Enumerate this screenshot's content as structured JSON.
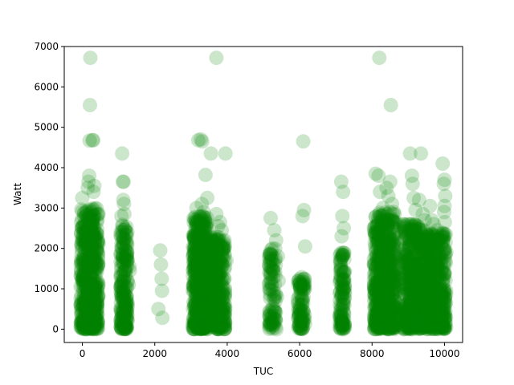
{
  "chart_data": {
    "type": "scatter",
    "title": "",
    "xlabel": "TUC",
    "ylabel": "Watt",
    "xlim": [
      -500,
      10500
    ],
    "ylim": [
      -330,
      7000
    ],
    "xticks": [
      0,
      2000,
      4000,
      6000,
      8000,
      10000
    ],
    "yticks": [
      0,
      1000,
      2000,
      3000,
      4000,
      5000,
      6000,
      7000
    ],
    "grid": false,
    "legend": "none",
    "marker_color": "#008000",
    "marker_alpha": 0.2,
    "clusters": [
      {
        "x": [
          -50,
          450
        ],
        "y": [
          0,
          3000
        ],
        "n": 520
      },
      {
        "x": [
          1050,
          1250
        ],
        "y": [
          0,
          2600
        ],
        "n": 200
      },
      {
        "x": [
          3050,
          3450
        ],
        "y": [
          0,
          2800
        ],
        "n": 460
      },
      {
        "x": [
          3450,
          3950
        ],
        "y": [
          0,
          2300
        ],
        "n": 320
      },
      {
        "x": [
          5150,
          5350
        ],
        "y": [
          0,
          2000
        ],
        "n": 90
      },
      {
        "x": [
          5950,
          6150
        ],
        "y": [
          0,
          1300
        ],
        "n": 90
      },
      {
        "x": [
          7100,
          7250
        ],
        "y": [
          0,
          1900
        ],
        "n": 110
      },
      {
        "x": [
          8050,
          8650
        ],
        "y": [
          0,
          2900
        ],
        "n": 560
      },
      {
        "x": [
          8850,
          9450
        ],
        "y": [
          0,
          2600
        ],
        "n": 440
      },
      {
        "x": [
          9450,
          10050
        ],
        "y": [
          0,
          2400
        ],
        "n": 420
      }
    ],
    "points": [
      [
        0,
        3250
      ],
      [
        150,
        3500
      ],
      [
        170,
        3650
      ],
      [
        190,
        3800
      ],
      [
        210,
        5550
      ],
      [
        220,
        6720
      ],
      [
        200,
        4670
      ],
      [
        280,
        4680
      ],
      [
        300,
        4680
      ],
      [
        310,
        3400
      ],
      [
        330,
        3550
      ],
      [
        60,
        1600
      ],
      [
        40,
        1150
      ],
      [
        30,
        600
      ],
      [
        1100,
        4350
      ],
      [
        1120,
        3650
      ],
      [
        1140,
        3650
      ],
      [
        1130,
        3200
      ],
      [
        1150,
        3100
      ],
      [
        1160,
        2850
      ],
      [
        1080,
        2800
      ],
      [
        1110,
        2550
      ],
      [
        1300,
        1550
      ],
      [
        1280,
        1100
      ],
      [
        1310,
        1450
      ],
      [
        2100,
        500
      ],
      [
        2150,
        1950
      ],
      [
        2170,
        1600
      ],
      [
        2190,
        1250
      ],
      [
        2200,
        950
      ],
      [
        2210,
        280
      ],
      [
        3200,
        4680
      ],
      [
        3270,
        4700
      ],
      [
        3310,
        4650
      ],
      [
        3300,
        3100
      ],
      [
        3350,
        2900
      ],
      [
        3150,
        3000
      ],
      [
        3400,
        3820
      ],
      [
        3450,
        3250
      ],
      [
        3550,
        4350
      ],
      [
        3700,
        6720
      ],
      [
        3700,
        2850
      ],
      [
        3750,
        2550
      ],
      [
        3800,
        2650
      ],
      [
        3850,
        2450
      ],
      [
        3950,
        4350
      ],
      [
        3900,
        2000
      ],
      [
        3980,
        1700
      ],
      [
        3120,
        2700
      ],
      [
        5200,
        2750
      ],
      [
        5300,
        2450
      ],
      [
        5250,
        2000
      ],
      [
        5350,
        2200
      ],
      [
        5400,
        1800
      ],
      [
        5420,
        1200
      ],
      [
        5380,
        800
      ],
      [
        5360,
        0
      ],
      [
        6100,
        4650
      ],
      [
        6120,
        2950
      ],
      [
        6080,
        2800
      ],
      [
        6150,
        2050
      ],
      [
        6130,
        1250
      ],
      [
        6110,
        1100
      ],
      [
        7150,
        3650
      ],
      [
        7200,
        3400
      ],
      [
        7180,
        2800
      ],
      [
        7220,
        2500
      ],
      [
        7160,
        2300
      ],
      [
        7210,
        0
      ],
      [
        8100,
        3850
      ],
      [
        8180,
        3800
      ],
      [
        8200,
        6720
      ],
      [
        8220,
        3400
      ],
      [
        8250,
        2800
      ],
      [
        8300,
        3000
      ],
      [
        8400,
        3500
      ],
      [
        8450,
        3300
      ],
      [
        8500,
        3650
      ],
      [
        8520,
        5550
      ],
      [
        8550,
        3100
      ],
      [
        8600,
        2900
      ],
      [
        8050,
        2500
      ],
      [
        8480,
        0
      ],
      [
        9050,
        4350
      ],
      [
        9100,
        3800
      ],
      [
        9120,
        3600
      ],
      [
        9150,
        3250
      ],
      [
        9200,
        2950
      ],
      [
        9100,
        2550
      ],
      [
        9350,
        4350
      ],
      [
        9300,
        3200
      ],
      [
        9400,
        2850
      ],
      [
        9450,
        2700
      ],
      [
        9600,
        3050
      ],
      [
        9650,
        2700
      ],
      [
        9700,
        2600
      ],
      [
        9800,
        2450
      ],
      [
        9950,
        4100
      ],
      [
        10000,
        3700
      ],
      [
        9980,
        3600
      ],
      [
        10020,
        3300
      ],
      [
        10000,
        3050
      ],
      [
        9990,
        2900
      ],
      [
        10010,
        2650
      ],
      [
        9970,
        2300
      ],
      [
        10030,
        2150
      ],
      [
        10050,
        1900
      ],
      [
        9500,
        2000
      ],
      [
        9550,
        1800
      ],
      [
        9000,
        2600
      ],
      [
        9050,
        2200
      ]
    ]
  }
}
